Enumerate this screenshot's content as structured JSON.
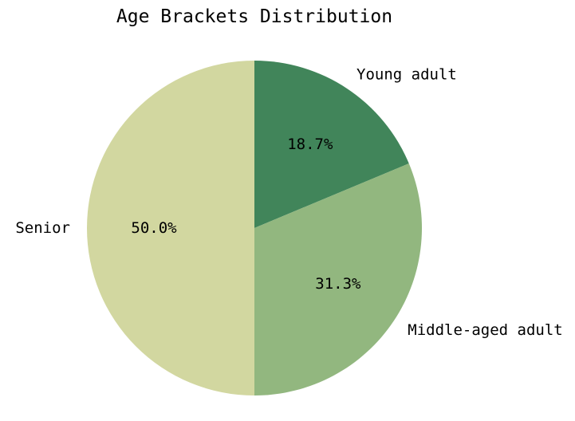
{
  "chart_data": {
    "type": "pie",
    "title": "Age Brackets Distribution",
    "categories": [
      "Young adult",
      "Middle-aged adult",
      "Senior"
    ],
    "values": [
      18.7,
      31.3,
      50.0
    ],
    "percent_labels": [
      "18.7%",
      "31.3%",
      "50.0%"
    ],
    "colors": [
      "#41855a",
      "#92b77f",
      "#d2d7a0"
    ],
    "start_angle": "top",
    "direction": "clockwise",
    "legend": "none"
  }
}
